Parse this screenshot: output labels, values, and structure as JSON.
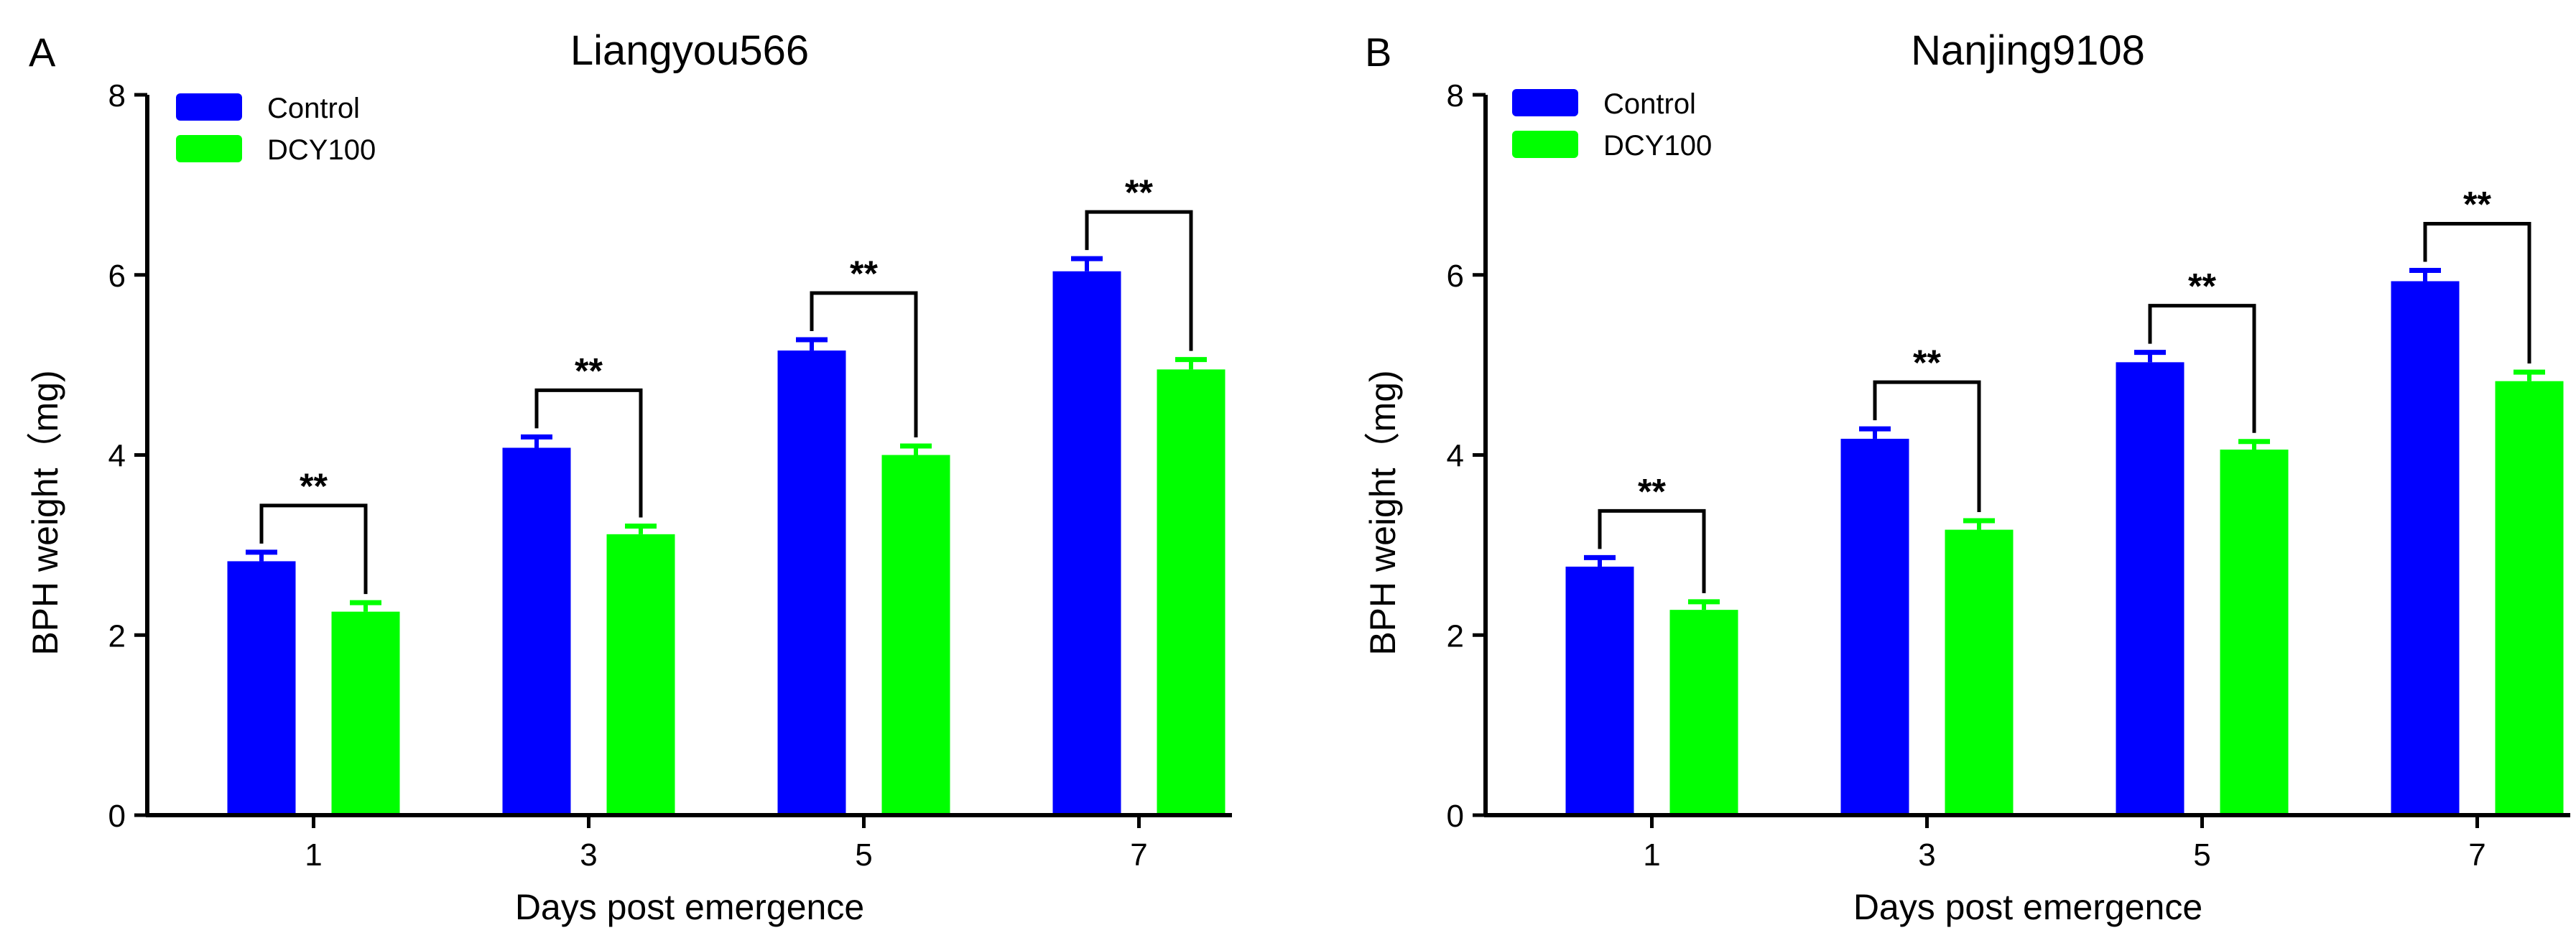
{
  "chart_data": [
    {
      "type": "bar",
      "panel": "A",
      "title": "Liangyou566",
      "xlabel": "Days post emergence",
      "ylabel": "BPH weight（mg)",
      "ylim": [
        0,
        8
      ],
      "yticks": [
        0,
        2,
        4,
        6,
        8
      ],
      "categories": [
        "1",
        "3",
        "5",
        "7"
      ],
      "legend_position": "top-left",
      "series": [
        {
          "name": "Control",
          "color": "#0000ff",
          "values": [
            2.82,
            4.08,
            5.16,
            6.04
          ],
          "errors": [
            0.1,
            0.12,
            0.12,
            0.14
          ]
        },
        {
          "name": "DCY100",
          "color": "#00ff00",
          "values": [
            2.26,
            3.12,
            4.0,
            4.95
          ],
          "errors": [
            0.1,
            0.09,
            0.1,
            0.11
          ]
        }
      ],
      "significance": [
        "**",
        "**",
        "**",
        "**"
      ]
    },
    {
      "type": "bar",
      "panel": "B",
      "title": "Nanjing9108",
      "xlabel": "Days post emergence",
      "ylabel": "BPH weight（mg)",
      "ylim": [
        0,
        8
      ],
      "yticks": [
        0,
        2,
        4,
        6,
        8
      ],
      "categories": [
        "1",
        "3",
        "5",
        "7"
      ],
      "legend_position": "top-left",
      "series": [
        {
          "name": "Control",
          "color": "#0000ff",
          "values": [
            2.76,
            4.18,
            5.03,
            5.93
          ],
          "errors": [
            0.1,
            0.11,
            0.11,
            0.12
          ]
        },
        {
          "name": "DCY100",
          "color": "#00ff00",
          "values": [
            2.28,
            3.17,
            4.06,
            4.82
          ],
          "errors": [
            0.09,
            0.1,
            0.09,
            0.1
          ]
        }
      ],
      "significance": [
        "**",
        "**",
        "**",
        "**"
      ]
    }
  ]
}
